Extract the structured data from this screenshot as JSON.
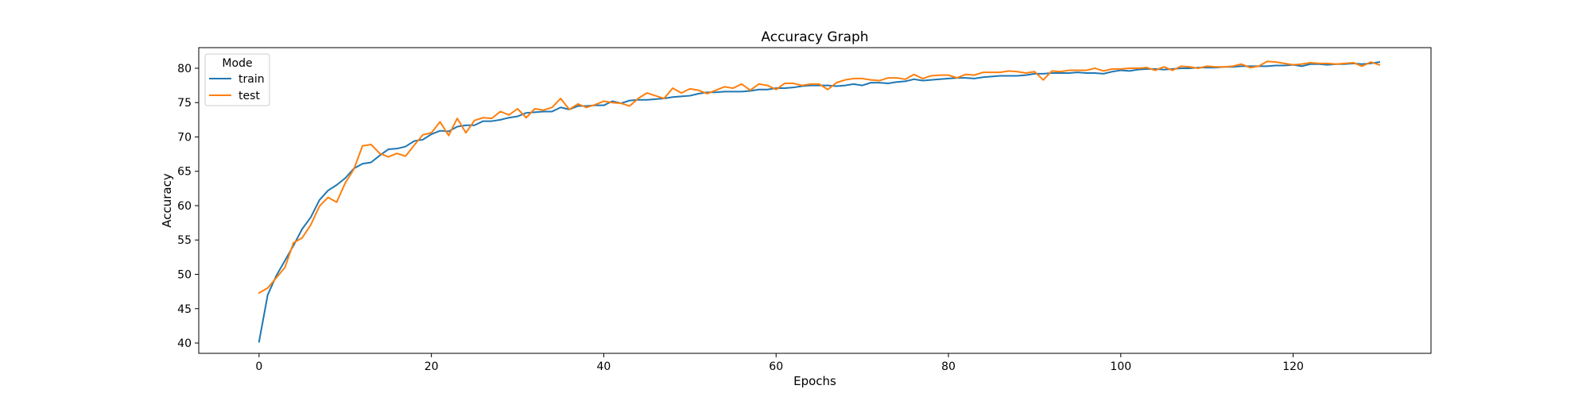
{
  "chart_data": {
    "type": "line",
    "title": "Accuracy Graph",
    "xlabel": "Epochs",
    "ylabel": "Accuracy",
    "xlim": [
      -7,
      136
    ],
    "ylim": [
      38.5,
      83
    ],
    "xticks": [
      0,
      20,
      40,
      60,
      80,
      100,
      120
    ],
    "yticks": [
      40,
      45,
      50,
      55,
      60,
      65,
      70,
      75,
      80
    ],
    "grid": false,
    "legend": {
      "title": "Mode",
      "placement": "top-left"
    },
    "series": [
      {
        "name": "train",
        "color": "#1f77b4",
        "x": [
          0,
          1,
          2,
          3,
          4,
          5,
          6,
          7,
          8,
          9,
          10,
          11,
          12,
          13,
          14,
          15,
          16,
          17,
          18,
          19,
          20,
          21,
          22,
          23,
          24,
          25,
          26,
          27,
          28,
          29,
          30,
          31,
          32,
          33,
          34,
          35,
          36,
          37,
          38,
          39,
          40,
          41,
          42,
          43,
          44,
          45,
          46,
          47,
          48,
          49,
          50,
          51,
          52,
          53,
          54,
          55,
          56,
          57,
          58,
          59,
          60,
          61,
          62,
          63,
          64,
          65,
          66,
          67,
          68,
          69,
          70,
          71,
          72,
          73,
          74,
          75,
          76,
          77,
          78,
          79,
          80,
          81,
          82,
          83,
          84,
          85,
          86,
          87,
          88,
          89,
          90,
          91,
          92,
          93,
          94,
          95,
          96,
          97,
          98,
          99,
          100,
          101,
          102,
          103,
          104,
          105,
          106,
          107,
          108,
          109,
          110,
          111,
          112,
          113,
          114,
          115,
          116,
          117,
          118,
          119,
          120,
          121,
          122,
          123,
          124,
          125,
          126,
          127,
          128,
          129,
          130
        ],
        "y": [
          40.2,
          47.0,
          49.8,
          52.0,
          54.2,
          56.6,
          58.3,
          60.8,
          62.2,
          63.0,
          64.0,
          65.4,
          66.1,
          66.3,
          67.3,
          68.2,
          68.3,
          68.6,
          69.4,
          69.6,
          70.4,
          70.9,
          70.8,
          71.5,
          71.7,
          71.7,
          72.3,
          72.3,
          72.5,
          72.8,
          73.0,
          73.5,
          73.6,
          73.7,
          73.7,
          74.3,
          74.0,
          74.5,
          74.5,
          74.6,
          74.6,
          75.2,
          74.9,
          75.3,
          75.4,
          75.4,
          75.5,
          75.6,
          75.8,
          75.9,
          76.0,
          76.3,
          76.5,
          76.5,
          76.6,
          76.6,
          76.6,
          76.7,
          76.9,
          76.9,
          77.1,
          77.1,
          77.2,
          77.4,
          77.5,
          77.5,
          77.5,
          77.4,
          77.5,
          77.7,
          77.5,
          77.9,
          77.9,
          77.8,
          78.0,
          78.1,
          78.4,
          78.2,
          78.3,
          78.4,
          78.5,
          78.6,
          78.6,
          78.5,
          78.7,
          78.8,
          78.9,
          78.9,
          78.9,
          79.0,
          79.2,
          79.2,
          79.3,
          79.3,
          79.3,
          79.4,
          79.3,
          79.3,
          79.2,
          79.5,
          79.7,
          79.6,
          79.8,
          79.9,
          79.9,
          79.8,
          79.9,
          80.0,
          80.0,
          80.1,
          80.1,
          80.1,
          80.2,
          80.2,
          80.3,
          80.3,
          80.3,
          80.3,
          80.4,
          80.4,
          80.5,
          80.3,
          80.6,
          80.6,
          80.5,
          80.6,
          80.6,
          80.7,
          80.6,
          80.7,
          80.9
        ]
      },
      {
        "name": "test",
        "color": "#ff7f0e",
        "x": [
          0,
          1,
          2,
          3,
          4,
          5,
          6,
          7,
          8,
          9,
          10,
          11,
          12,
          13,
          14,
          15,
          16,
          17,
          18,
          19,
          20,
          21,
          22,
          23,
          24,
          25,
          26,
          27,
          28,
          29,
          30,
          31,
          32,
          33,
          34,
          35,
          36,
          37,
          38,
          39,
          40,
          41,
          42,
          43,
          44,
          45,
          46,
          47,
          48,
          49,
          50,
          51,
          52,
          53,
          54,
          55,
          56,
          57,
          58,
          59,
          60,
          61,
          62,
          63,
          64,
          65,
          66,
          67,
          68,
          69,
          70,
          71,
          72,
          73,
          74,
          75,
          76,
          77,
          78,
          79,
          80,
          81,
          82,
          83,
          84,
          85,
          86,
          87,
          88,
          89,
          90,
          91,
          92,
          93,
          94,
          95,
          96,
          97,
          98,
          99,
          100,
          101,
          102,
          103,
          104,
          105,
          106,
          107,
          108,
          109,
          110,
          111,
          112,
          113,
          114,
          115,
          116,
          117,
          118,
          119,
          120,
          121,
          122,
          123,
          124,
          125,
          126,
          127,
          128,
          129,
          130
        ],
        "y": [
          47.3,
          48.0,
          49.5,
          51.0,
          54.6,
          55.3,
          57.2,
          59.9,
          61.2,
          60.5,
          63.3,
          65.3,
          68.7,
          68.9,
          67.6,
          67.1,
          67.6,
          67.2,
          68.8,
          70.3,
          70.6,
          72.2,
          70.2,
          72.7,
          70.6,
          72.4,
          72.8,
          72.7,
          73.7,
          73.2,
          74.1,
          72.8,
          74.1,
          73.9,
          74.3,
          75.6,
          74.0,
          74.8,
          74.3,
          74.7,
          75.2,
          75.0,
          74.9,
          74.5,
          75.6,
          76.4,
          76.0,
          75.6,
          77.1,
          76.4,
          77.0,
          76.8,
          76.3,
          76.8,
          77.3,
          77.1,
          77.7,
          76.8,
          77.7,
          77.5,
          76.9,
          77.8,
          77.8,
          77.5,
          77.7,
          77.7,
          76.9,
          77.9,
          78.3,
          78.5,
          78.5,
          78.3,
          78.2,
          78.6,
          78.6,
          78.4,
          79.1,
          78.5,
          78.9,
          79.0,
          79.0,
          78.6,
          79.1,
          79.0,
          79.4,
          79.4,
          79.4,
          79.6,
          79.5,
          79.3,
          79.5,
          78.3,
          79.6,
          79.5,
          79.7,
          79.7,
          79.7,
          80.0,
          79.6,
          79.9,
          79.9,
          80.0,
          80.0,
          80.1,
          79.7,
          80.2,
          79.7,
          80.3,
          80.2,
          80.0,
          80.3,
          80.2,
          80.2,
          80.3,
          80.6,
          80.1,
          80.3,
          81.0,
          80.9,
          80.7,
          80.5,
          80.6,
          80.8,
          80.7,
          80.7,
          80.6,
          80.7,
          80.8,
          80.3,
          80.9,
          80.5
        ]
      }
    ]
  }
}
